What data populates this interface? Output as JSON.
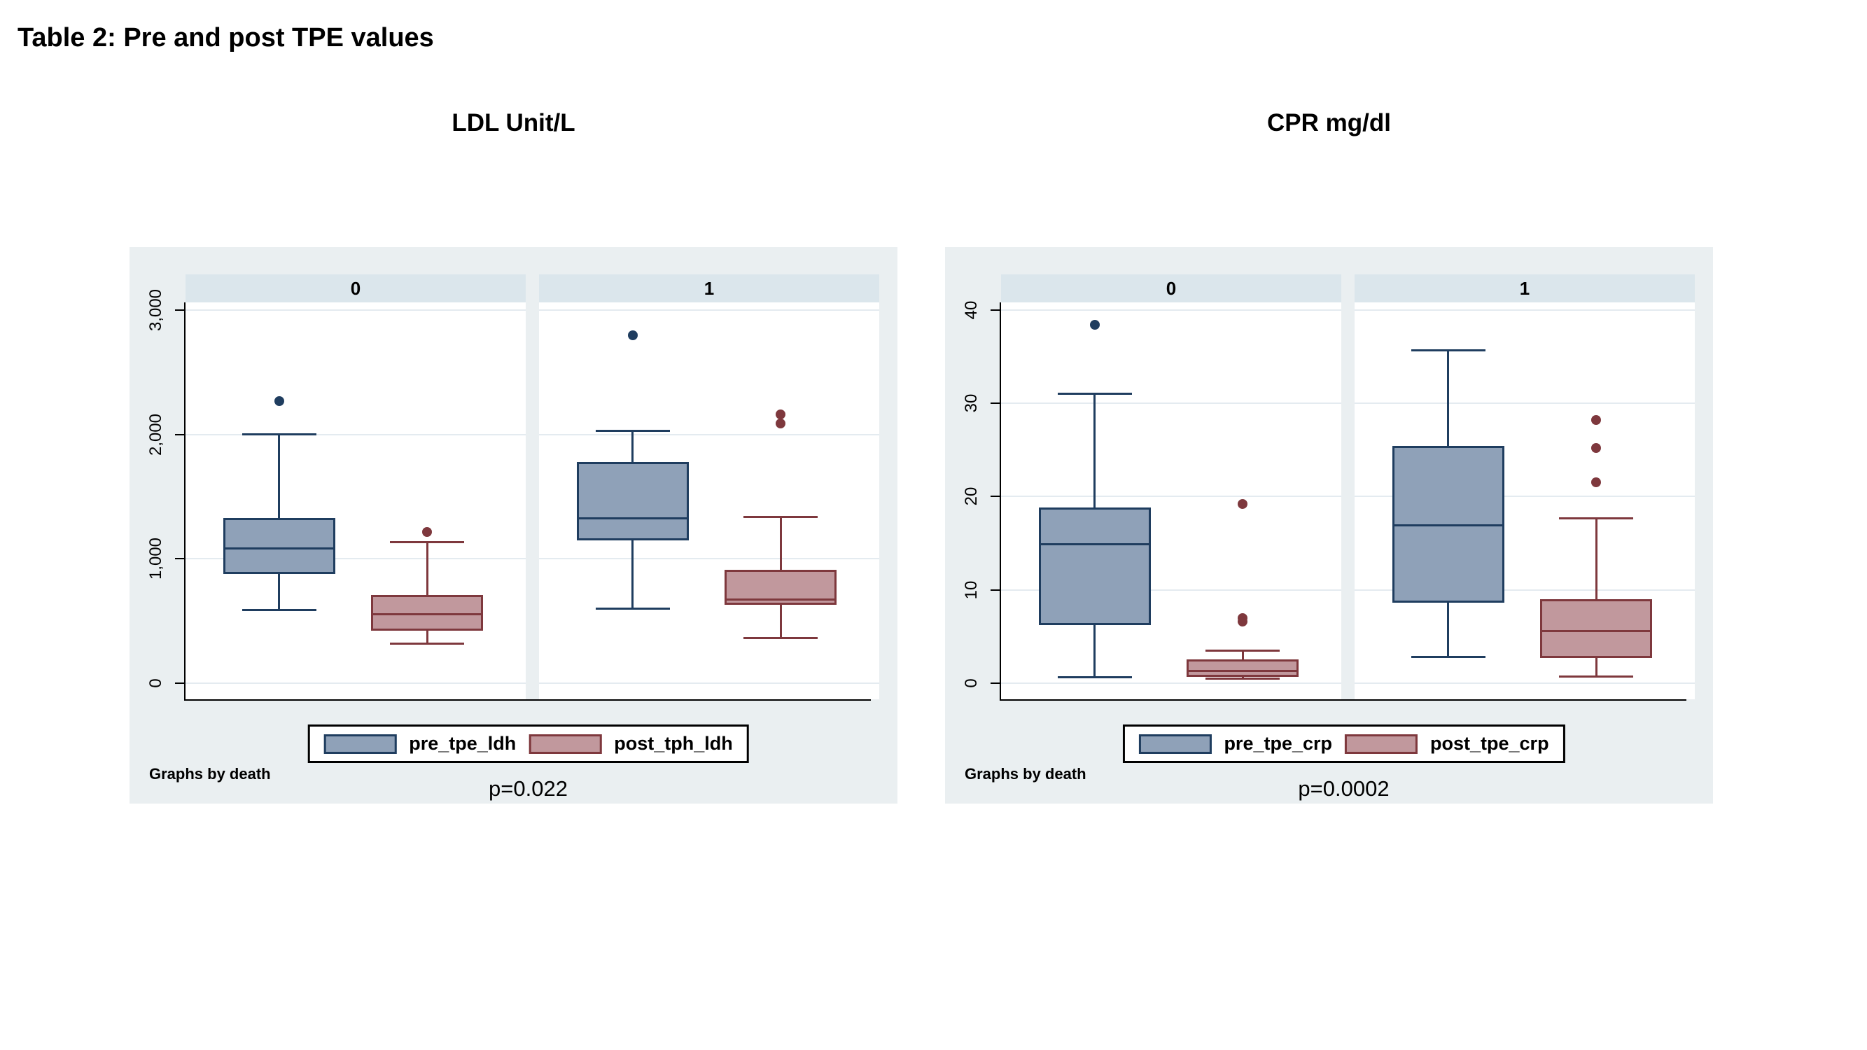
{
  "page": {
    "title": "Table 2: Pre and post TPE values"
  },
  "colors": {
    "figure_bg": "#EAEFF1",
    "panel_header_bg": "#DBE6EC",
    "plot_bg": "#FFFFFF",
    "grid": "#E4EBF0",
    "axis": "#000000",
    "pre_fill": "#8FA1B8",
    "pre_stroke": "#1F3D5F",
    "post_fill": "#C1989D",
    "post_stroke": "#7E383D",
    "legend_border": "#000000",
    "legend_bg": "#FFFFFF"
  },
  "chart_data": [
    {
      "type": "box",
      "title": "LDL Unit/L",
      "group_note": "Graphs by death",
      "p_value": "p=0.022",
      "ylabel": "",
      "y_ticks": [
        0,
        1000,
        2000,
        3000
      ],
      "y_tick_labels": [
        "0",
        "1,000",
        "2,000",
        "3,000"
      ],
      "y_domain": [
        -130,
        3062
      ],
      "grid": true,
      "legend_position": "bottom",
      "legend": [
        {
          "label": "pre_tpe_ldh",
          "color_key": "pre"
        },
        {
          "label": "post_tph_ldh",
          "color_key": "post"
        }
      ],
      "panels": [
        {
          "label": "0",
          "series": [
            {
              "name": "pre_tpe_ldh",
              "color_key": "pre",
              "low": 590,
              "q1": 878,
              "median": 1090,
              "q3": 1328,
              "high": 2000,
              "outliers": [
                2270
              ]
            },
            {
              "name": "post_tph_ldh",
              "color_key": "post",
              "low": 317,
              "q1": 420,
              "median": 560,
              "q3": 709,
              "high": 1132,
              "outliers": [
                1213
              ]
            }
          ]
        },
        {
          "label": "1",
          "series": [
            {
              "name": "pre_tpe_ldh",
              "color_key": "pre",
              "low": 600,
              "q1": 1150,
              "median": 1335,
              "q3": 1780,
              "high": 2030,
              "outliers": [
                2800
              ]
            },
            {
              "name": "post_tph_ldh",
              "color_key": "post",
              "low": 360,
              "q1": 630,
              "median": 683,
              "q3": 912,
              "high": 1335,
              "outliers": [
                2090,
                2160
              ]
            }
          ]
        }
      ]
    },
    {
      "type": "box",
      "title": "CPR mg/dl",
      "group_note": "Graphs by death",
      "p_value": "p=0.0002",
      "ylabel": "",
      "y_ticks": [
        0,
        10,
        20,
        30,
        40
      ],
      "y_tick_labels": [
        "0",
        "10",
        "20",
        "30",
        "40"
      ],
      "y_domain": [
        -1.73,
        40.82
      ],
      "grid": true,
      "legend_position": "bottom",
      "legend": [
        {
          "label": "pre_tpe_crp",
          "color_key": "pre"
        },
        {
          "label": "post_tpe_crp",
          "color_key": "post"
        }
      ],
      "panels": [
        {
          "label": "0",
          "series": [
            {
              "name": "pre_tpe_crp",
              "color_key": "pre",
              "low": 0.6,
              "q1": 6.2,
              "median": 15,
              "q3": 18.8,
              "high": 31,
              "outliers": [
                38.4
              ]
            },
            {
              "name": "post_tpe_crp",
              "color_key": "post",
              "low": 0.5,
              "q1": 0.65,
              "median": 1.4,
              "q3": 2.55,
              "high": 3.5,
              "outliers": [
                19.2,
                7.0,
                6.6
              ]
            }
          ]
        },
        {
          "label": "1",
          "series": [
            {
              "name": "pre_tpe_crp",
              "color_key": "pre",
              "low": 2.8,
              "q1": 8.6,
              "median": 17,
              "q3": 25.4,
              "high": 35.7,
              "outliers": []
            },
            {
              "name": "post_tpe_crp",
              "color_key": "post",
              "low": 0.7,
              "q1": 2.7,
              "median": 5.7,
              "q3": 9.0,
              "high": 17.7,
              "outliers": [
                28.2,
                25.2,
                21.5
              ]
            }
          ]
        }
      ]
    }
  ]
}
